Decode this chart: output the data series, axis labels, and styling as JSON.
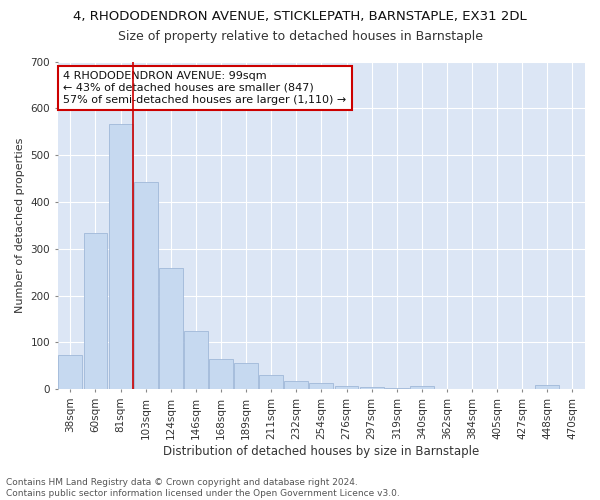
{
  "title1": "4, RHODODENDRON AVENUE, STICKLEPATH, BARNSTAPLE, EX31 2DL",
  "title2": "Size of property relative to detached houses in Barnstaple",
  "xlabel": "Distribution of detached houses by size in Barnstaple",
  "ylabel": "Number of detached properties",
  "categories": [
    "38sqm",
    "60sqm",
    "81sqm",
    "103sqm",
    "124sqm",
    "146sqm",
    "168sqm",
    "189sqm",
    "211sqm",
    "232sqm",
    "254sqm",
    "276sqm",
    "297sqm",
    "319sqm",
    "340sqm",
    "362sqm",
    "384sqm",
    "405sqm",
    "427sqm",
    "448sqm",
    "470sqm"
  ],
  "values": [
    72,
    333,
    567,
    443,
    258,
    125,
    65,
    55,
    30,
    18,
    14,
    7,
    5,
    3,
    6,
    0,
    0,
    0,
    0,
    8,
    0
  ],
  "bar_color": "#c6d9f0",
  "bar_edge_color": "#a0b8d8",
  "vline_color": "#cc0000",
  "vline_pos": 2.5,
  "annotation_text": "4 RHODODENDRON AVENUE: 99sqm\n← 43% of detached houses are smaller (847)\n57% of semi-detached houses are larger (1,110) →",
  "annotation_box_color": "#ffffff",
  "annotation_box_edge": "#cc0000",
  "ylim": [
    0,
    700
  ],
  "yticks": [
    0,
    100,
    200,
    300,
    400,
    500,
    600,
    700
  ],
  "background_color": "#dce6f5",
  "grid_color": "#ffffff",
  "fig_background": "#ffffff",
  "footnote": "Contains HM Land Registry data © Crown copyright and database right 2024.\nContains public sector information licensed under the Open Government Licence v3.0.",
  "title1_fontsize": 9.5,
  "title2_fontsize": 9,
  "xlabel_fontsize": 8.5,
  "ylabel_fontsize": 8,
  "tick_fontsize": 7.5,
  "annotation_fontsize": 8,
  "footnote_fontsize": 6.5
}
